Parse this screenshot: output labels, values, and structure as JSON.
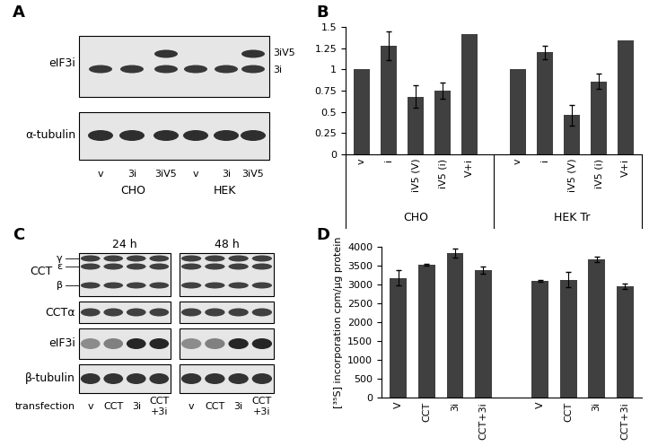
{
  "blots": [
    {
      "panel": "A",
      "rows": [
        {
          "label": "eIF3i",
          "bands": [
            "3iV5",
            "3i"
          ]
        },
        {
          "label": "α-tubulin"
        }
      ],
      "groups": [
        {
          "name": "CHO",
          "lanes": [
            "v",
            "3i",
            "3iV5"
          ]
        },
        {
          "name": "HEK",
          "lanes": [
            "v",
            "3i",
            "3iV5"
          ]
        }
      ]
    },
    {
      "panel": "C",
      "times": [
        "24 h",
        "48 h"
      ],
      "rows": [
        {
          "label": "CCT",
          "bands": [
            "γ",
            "ε",
            "β"
          ]
        },
        {
          "label": "CCTα"
        },
        {
          "label": "eIF3i"
        },
        {
          "label": "β-tubulin"
        }
      ],
      "lanes_title": "transfection",
      "lanes": [
        "v",
        "CCT",
        "3i",
        "CCT\n+3i"
      ]
    }
  ],
  "chart_data": [
    {
      "panel": "B",
      "type": "bar",
      "color": "#404040",
      "ylim": [
        0,
        1.5
      ],
      "yticks": [
        0,
        0.25,
        0.5,
        0.75,
        1,
        1.25,
        1.5
      ],
      "groups": [
        {
          "name": "CHO",
          "categories": [
            "v",
            "i",
            "iV5 (V)",
            "iV5 (i)",
            "V+i"
          ],
          "values": [
            1,
            1.28,
            0.68,
            0.75,
            1.42
          ],
          "errors": [
            null,
            0.17,
            0.13,
            0.1,
            null
          ]
        },
        {
          "name": "HEK Tr",
          "categories": [
            "v",
            "i",
            "iV5 (V)",
            "iV5 (i)",
            "V+i"
          ],
          "values": [
            1,
            1.2,
            0.46,
            0.86,
            1.34
          ],
          "errors": [
            null,
            0.08,
            0.12,
            0.09,
            null
          ]
        }
      ]
    },
    {
      "panel": "D",
      "type": "bar",
      "color": "#404040",
      "y_label": "[³⁵S] incorporation cpm/μg protein",
      "ylim": [
        0,
        4000
      ],
      "yticks": [
        0,
        500,
        1000,
        1500,
        2000,
        2500,
        3000,
        3500,
        4000
      ],
      "groups": [
        {
          "categories": [
            "V",
            "CCT",
            "3i",
            "CCT+3i"
          ],
          "values": [
            3170,
            3530,
            3830,
            3380
          ],
          "errors": [
            200,
            20,
            120,
            90
          ]
        },
        {
          "categories": [
            "V",
            "CCT",
            "3i",
            "CCT+3i"
          ],
          "values": [
            3100,
            3130,
            3670,
            2950
          ],
          "errors": [
            20,
            200,
            80,
            70
          ]
        }
      ]
    }
  ]
}
